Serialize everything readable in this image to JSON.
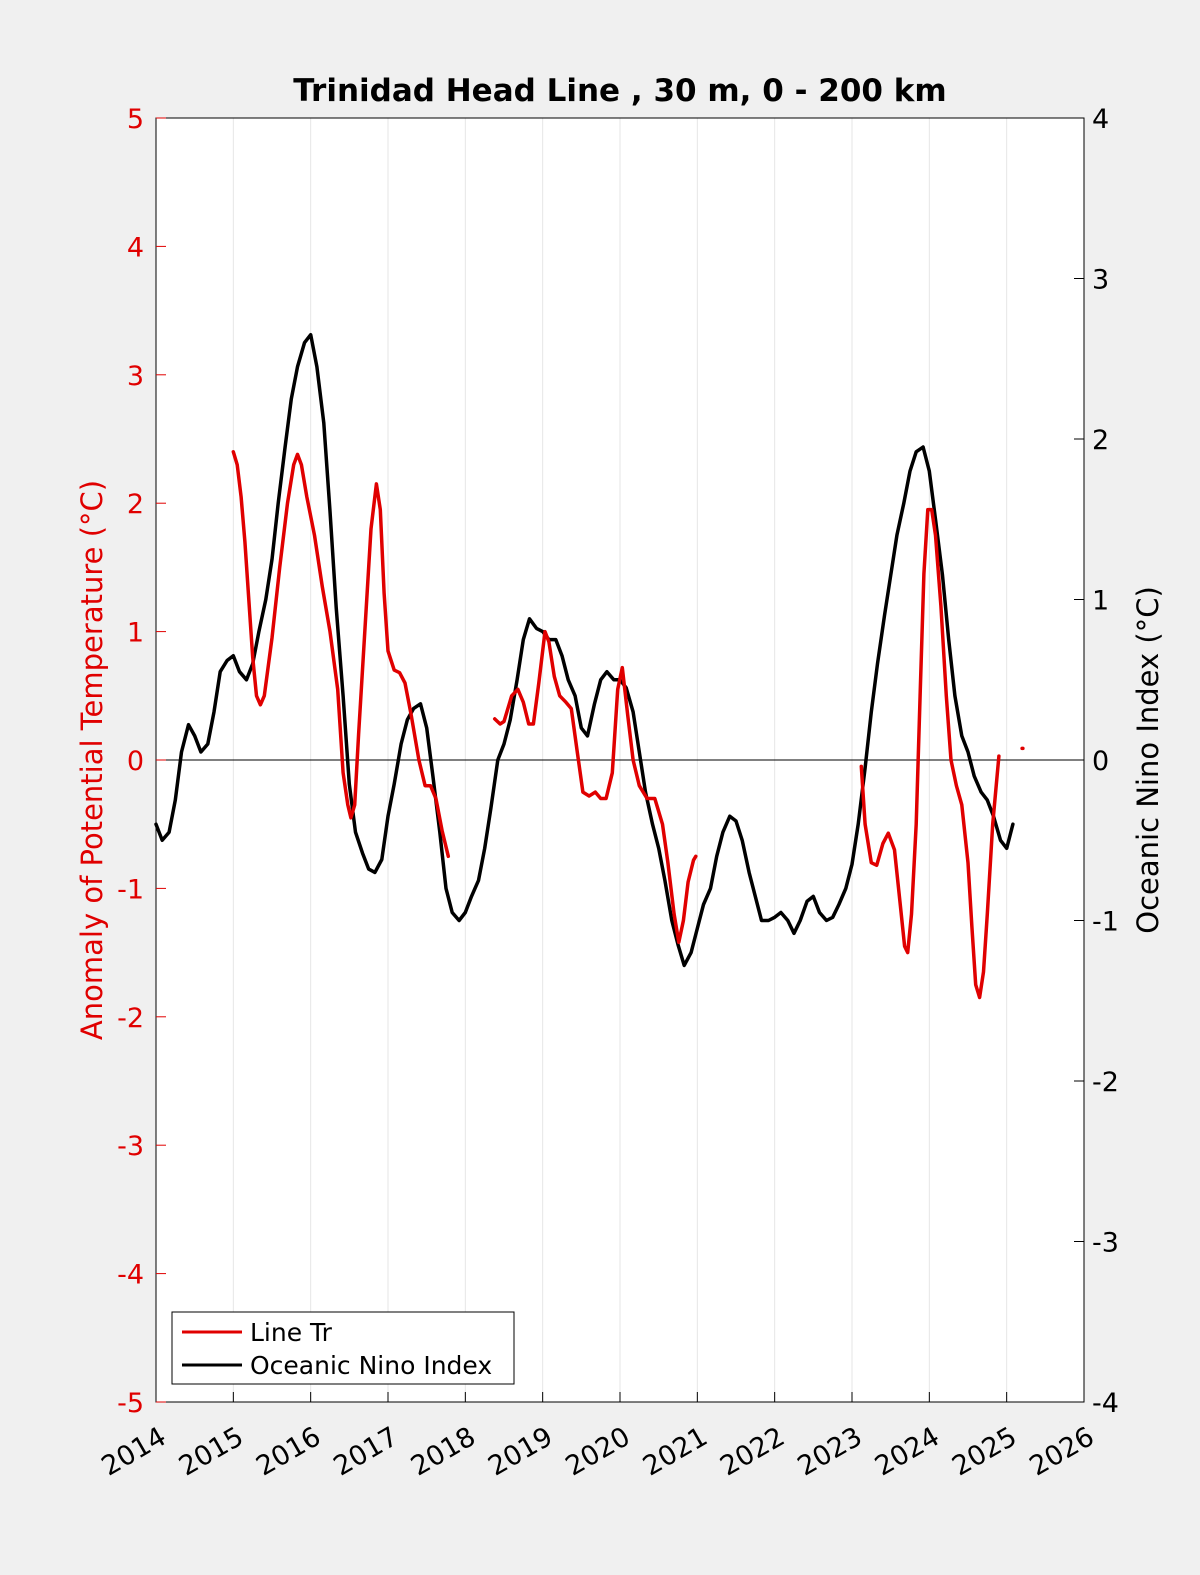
{
  "chart_data": {
    "type": "line",
    "title": "Trinidad Head Line , 30 m, 0 - 200 km",
    "xlabel": "",
    "ylabel_left": "Anomaly of Potential Temperature (°C)",
    "ylabel_right": "Oceanic Nino Index (°C)",
    "xlim": [
      2014,
      2026
    ],
    "ylim_left": [
      -5,
      5
    ],
    "ylim_right": [
      -4,
      4
    ],
    "x_ticks": [
      "2014",
      "2015",
      "2016",
      "2017",
      "2018",
      "2019",
      "2020",
      "2021",
      "2022",
      "2023",
      "2024",
      "2025",
      "2026"
    ],
    "y_ticks_left": [
      "-5",
      "-4",
      "-3",
      "-2",
      "-1",
      "0",
      "1",
      "2",
      "3",
      "4",
      "5"
    ],
    "y_ticks_right": [
      "-4",
      "-3",
      "-2",
      "-1",
      "0",
      "1",
      "2",
      "3",
      "4"
    ],
    "grid": "vertical",
    "zero_line": true,
    "legend_position": "bottom-left",
    "colors": {
      "line_tr": "#e00000",
      "oni": "#000000",
      "left_axis": "#e00000",
      "right_axis": "#000000",
      "plot_bg": "#ffffff",
      "page_bg": "#f0f0f0",
      "grid": "#e6e6e6"
    },
    "series": [
      {
        "name": "Line Tr",
        "axis": "left",
        "segments": [
          [
            [
              2015.0,
              2.4
            ],
            [
              2015.05,
              2.3
            ],
            [
              2015.1,
              2.05
            ],
            [
              2015.15,
              1.7
            ],
            [
              2015.2,
              1.25
            ],
            [
              2015.25,
              0.8
            ],
            [
              2015.3,
              0.5
            ],
            [
              2015.35,
              0.43
            ],
            [
              2015.4,
              0.5
            ],
            [
              2015.5,
              0.95
            ],
            [
              2015.6,
              1.5
            ],
            [
              2015.7,
              2.0
            ],
            [
              2015.78,
              2.3
            ],
            [
              2015.83,
              2.38
            ],
            [
              2015.88,
              2.3
            ],
            [
              2015.95,
              2.05
            ],
            [
              2016.05,
              1.75
            ],
            [
              2016.15,
              1.35
            ],
            [
              2016.25,
              1.0
            ],
            [
              2016.35,
              0.55
            ],
            [
              2016.42,
              -0.1
            ],
            [
              2016.48,
              -0.35
            ],
            [
              2016.52,
              -0.45
            ],
            [
              2016.57,
              -0.35
            ],
            [
              2016.62,
              0.2
            ],
            [
              2016.7,
              1.0
            ],
            [
              2016.78,
              1.8
            ],
            [
              2016.85,
              2.15
            ],
            [
              2016.9,
              1.95
            ],
            [
              2016.95,
              1.3
            ],
            [
              2017.0,
              0.85
            ],
            [
              2017.08,
              0.7
            ],
            [
              2017.15,
              0.68
            ],
            [
              2017.22,
              0.6
            ],
            [
              2017.3,
              0.35
            ],
            [
              2017.4,
              0.0
            ],
            [
              2017.48,
              -0.2
            ],
            [
              2017.55,
              -0.2
            ],
            [
              2017.62,
              -0.3
            ],
            [
              2017.7,
              -0.55
            ],
            [
              2017.78,
              -0.75
            ]
          ],
          [
            [
              2018.38,
              0.32
            ],
            [
              2018.45,
              0.28
            ],
            [
              2018.5,
              0.3
            ],
            [
              2018.6,
              0.5
            ],
            [
              2018.68,
              0.55
            ],
            [
              2018.75,
              0.45
            ],
            [
              2018.82,
              0.28
            ],
            [
              2018.88,
              0.28
            ],
            [
              2018.95,
              0.6
            ],
            [
              2019.03,
              1.0
            ],
            [
              2019.08,
              0.92
            ],
            [
              2019.15,
              0.65
            ],
            [
              2019.22,
              0.5
            ],
            [
              2019.3,
              0.45
            ],
            [
              2019.37,
              0.4
            ],
            [
              2019.45,
              0.05
            ],
            [
              2019.52,
              -0.25
            ],
            [
              2019.6,
              -0.28
            ],
            [
              2019.68,
              -0.25
            ],
            [
              2019.75,
              -0.3
            ],
            [
              2019.82,
              -0.3
            ],
            [
              2019.9,
              -0.1
            ],
            [
              2019.97,
              0.55
            ],
            [
              2020.03,
              0.72
            ],
            [
              2020.1,
              0.35
            ],
            [
              2020.17,
              0.0
            ],
            [
              2020.25,
              -0.2
            ],
            [
              2020.35,
              -0.3
            ],
            [
              2020.45,
              -0.3
            ],
            [
              2020.55,
              -0.5
            ],
            [
              2020.62,
              -0.8
            ],
            [
              2020.7,
              -1.2
            ],
            [
              2020.76,
              -1.42
            ],
            [
              2020.82,
              -1.25
            ],
            [
              2020.88,
              -0.95
            ],
            [
              2020.95,
              -0.78
            ],
            [
              2020.98,
              -0.75
            ]
          ],
          [
            [
              2023.12,
              -0.05
            ],
            [
              2023.17,
              -0.5
            ],
            [
              2023.25,
              -0.8
            ],
            [
              2023.32,
              -0.82
            ],
            [
              2023.4,
              -0.65
            ],
            [
              2023.47,
              -0.57
            ],
            [
              2023.55,
              -0.7
            ],
            [
              2023.62,
              -1.1
            ],
            [
              2023.68,
              -1.45
            ],
            [
              2023.72,
              -1.5
            ],
            [
              2023.77,
              -1.2
            ],
            [
              2023.83,
              -0.5
            ],
            [
              2023.88,
              0.5
            ],
            [
              2023.93,
              1.45
            ],
            [
              2023.98,
              1.95
            ],
            [
              2024.03,
              1.95
            ],
            [
              2024.08,
              1.75
            ],
            [
              2024.15,
              1.2
            ],
            [
              2024.22,
              0.5
            ],
            [
              2024.28,
              0.0
            ],
            [
              2024.35,
              -0.2
            ],
            [
              2024.42,
              -0.35
            ],
            [
              2024.5,
              -0.8
            ],
            [
              2024.55,
              -1.3
            ],
            [
              2024.6,
              -1.75
            ],
            [
              2024.65,
              -1.85
            ],
            [
              2024.7,
              -1.65
            ],
            [
              2024.75,
              -1.2
            ],
            [
              2024.82,
              -0.5
            ],
            [
              2024.9,
              0.03
            ]
          ],
          [
            [
              2025.2,
              0.09
            ],
            [
              2025.21,
              0.09
            ]
          ]
        ]
      },
      {
        "name": "Oceanic Nino Index",
        "axis": "right",
        "segments": [
          [
            [
              2014.0,
              -0.4
            ],
            [
              2014.08,
              -0.5
            ],
            [
              2014.17,
              -0.45
            ],
            [
              2014.25,
              -0.25
            ],
            [
              2014.33,
              0.05
            ],
            [
              2014.42,
              0.22
            ],
            [
              2014.5,
              0.15
            ],
            [
              2014.58,
              0.05
            ],
            [
              2014.67,
              0.1
            ],
            [
              2014.75,
              0.3
            ],
            [
              2014.83,
              0.55
            ],
            [
              2014.92,
              0.62
            ],
            [
              2015.0,
              0.65
            ],
            [
              2015.08,
              0.55
            ],
            [
              2015.17,
              0.5
            ],
            [
              2015.25,
              0.6
            ],
            [
              2015.33,
              0.8
            ],
            [
              2015.42,
              1.0
            ],
            [
              2015.5,
              1.25
            ],
            [
              2015.58,
              1.6
            ],
            [
              2015.67,
              1.95
            ],
            [
              2015.75,
              2.25
            ],
            [
              2015.83,
              2.45
            ],
            [
              2015.92,
              2.6
            ],
            [
              2016.0,
              2.65
            ],
            [
              2016.08,
              2.45
            ],
            [
              2016.17,
              2.1
            ],
            [
              2016.25,
              1.55
            ],
            [
              2016.33,
              0.95
            ],
            [
              2016.42,
              0.4
            ],
            [
              2016.5,
              -0.15
            ],
            [
              2016.58,
              -0.45
            ],
            [
              2016.67,
              -0.58
            ],
            [
              2016.75,
              -0.68
            ],
            [
              2016.83,
              -0.7
            ],
            [
              2016.92,
              -0.62
            ],
            [
              2017.0,
              -0.35
            ],
            [
              2017.08,
              -0.15
            ],
            [
              2017.17,
              0.1
            ],
            [
              2017.25,
              0.25
            ],
            [
              2017.33,
              0.32
            ],
            [
              2017.42,
              0.35
            ],
            [
              2017.5,
              0.2
            ],
            [
              2017.58,
              -0.1
            ],
            [
              2017.67,
              -0.45
            ],
            [
              2017.75,
              -0.8
            ],
            [
              2017.83,
              -0.95
            ],
            [
              2017.92,
              -1.0
            ],
            [
              2018.0,
              -0.95
            ],
            [
              2018.08,
              -0.85
            ],
            [
              2018.17,
              -0.75
            ],
            [
              2018.25,
              -0.55
            ],
            [
              2018.33,
              -0.3
            ],
            [
              2018.42,
              0.0
            ],
            [
              2018.5,
              0.1
            ],
            [
              2018.58,
              0.25
            ],
            [
              2018.67,
              0.5
            ],
            [
              2018.75,
              0.75
            ],
            [
              2018.83,
              0.88
            ],
            [
              2018.92,
              0.82
            ],
            [
              2019.0,
              0.8
            ],
            [
              2019.08,
              0.75
            ],
            [
              2019.17,
              0.75
            ],
            [
              2019.25,
              0.65
            ],
            [
              2019.33,
              0.5
            ],
            [
              2019.42,
              0.4
            ],
            [
              2019.5,
              0.2
            ],
            [
              2019.58,
              0.15
            ],
            [
              2019.67,
              0.35
            ],
            [
              2019.75,
              0.5
            ],
            [
              2019.83,
              0.55
            ],
            [
              2019.92,
              0.5
            ],
            [
              2020.0,
              0.5
            ],
            [
              2020.08,
              0.45
            ],
            [
              2020.17,
              0.3
            ],
            [
              2020.25,
              0.05
            ],
            [
              2020.33,
              -0.2
            ],
            [
              2020.42,
              -0.4
            ],
            [
              2020.5,
              -0.55
            ],
            [
              2020.58,
              -0.75
            ],
            [
              2020.67,
              -1.0
            ],
            [
              2020.75,
              -1.15
            ],
            [
              2020.83,
              -1.28
            ],
            [
              2020.92,
              -1.2
            ],
            [
              2021.0,
              -1.05
            ],
            [
              2021.08,
              -0.9
            ],
            [
              2021.17,
              -0.8
            ],
            [
              2021.25,
              -0.6
            ],
            [
              2021.33,
              -0.45
            ],
            [
              2021.42,
              -0.35
            ],
            [
              2021.5,
              -0.38
            ],
            [
              2021.58,
              -0.5
            ],
            [
              2021.67,
              -0.7
            ],
            [
              2021.75,
              -0.85
            ],
            [
              2021.83,
              -1.0
            ],
            [
              2021.92,
              -1.0
            ],
            [
              2022.0,
              -0.98
            ],
            [
              2022.08,
              -0.95
            ],
            [
              2022.17,
              -1.0
            ],
            [
              2022.25,
              -1.08
            ],
            [
              2022.33,
              -1.0
            ],
            [
              2022.42,
              -0.88
            ],
            [
              2022.5,
              -0.85
            ],
            [
              2022.58,
              -0.95
            ],
            [
              2022.67,
              -1.0
            ],
            [
              2022.75,
              -0.98
            ],
            [
              2022.83,
              -0.9
            ],
            [
              2022.92,
              -0.8
            ],
            [
              2023.0,
              -0.65
            ],
            [
              2023.08,
              -0.4
            ],
            [
              2023.17,
              -0.05
            ],
            [
              2023.25,
              0.3
            ],
            [
              2023.33,
              0.6
            ],
            [
              2023.42,
              0.9
            ],
            [
              2023.5,
              1.15
            ],
            [
              2023.58,
              1.4
            ],
            [
              2023.67,
              1.6
            ],
            [
              2023.75,
              1.8
            ],
            [
              2023.83,
              1.92
            ],
            [
              2023.92,
              1.95
            ],
            [
              2024.0,
              1.8
            ],
            [
              2024.08,
              1.5
            ],
            [
              2024.17,
              1.15
            ],
            [
              2024.25,
              0.75
            ],
            [
              2024.33,
              0.4
            ],
            [
              2024.42,
              0.15
            ],
            [
              2024.5,
              0.05
            ],
            [
              2024.58,
              -0.1
            ],
            [
              2024.67,
              -0.2
            ],
            [
              2024.75,
              -0.25
            ],
            [
              2024.83,
              -0.35
            ],
            [
              2024.92,
              -0.5
            ],
            [
              2025.0,
              -0.55
            ],
            [
              2025.08,
              -0.4
            ]
          ]
        ]
      }
    ],
    "legend": [
      "Line Tr",
      "Oceanic Nino Index"
    ]
  }
}
